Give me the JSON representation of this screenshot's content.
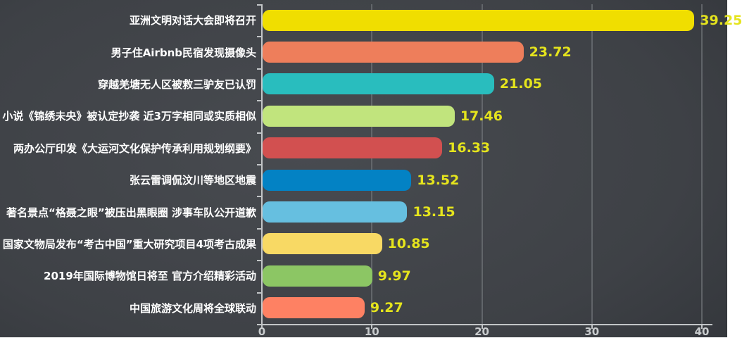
{
  "chart_data": {
    "type": "bar",
    "orientation": "horizontal",
    "title": "",
    "xlabel": "",
    "ylabel": "",
    "categories": [
      "亚洲文明对话大会即将召开",
      "男子住Airbnb民宿发现摄像头",
      "穿越羌塘无人区被救三驴友已认罚",
      "小说《锦绣未央》被认定抄袭 近3万字相同或实质相似",
      "两办公厅印发《大运河文化保护传承利用规划纲要》",
      "张云雷调侃汶川等地区地震",
      "著名景点“格聂之眼”被压出黑眼圈 涉事车队公开道歉",
      "国家文物局发布“考古中国”重大研究项目4项考古成果",
      "2019年国际博物馆日将至 官方介绍精彩活动",
      "中国旅游文化周将全球联动"
    ],
    "values": [
      39.25,
      23.72,
      21.05,
      17.46,
      16.33,
      13.52,
      13.15,
      10.85,
      9.97,
      9.27
    ],
    "bar_colors": [
      "#f0de00",
      "#ee7e5b",
      "#29bdbe",
      "#c1e47d",
      "#d25050",
      "#0382c4",
      "#66bfe0",
      "#f8d964",
      "#8cc664",
      "#fe8163"
    ],
    "xlim": [
      0,
      40
    ],
    "x_ticks": [
      0,
      10,
      20,
      30,
      40
    ],
    "grid": true,
    "legend_position": "none"
  },
  "colors": {
    "background_center": "#484b50",
    "background_edge": "#212427",
    "axis_line": "#c2c5c7",
    "grid_line": "#6e7175",
    "category_label": "#ffffff",
    "value_label": "#e5e41d",
    "tick_label": "#c9ccce"
  }
}
